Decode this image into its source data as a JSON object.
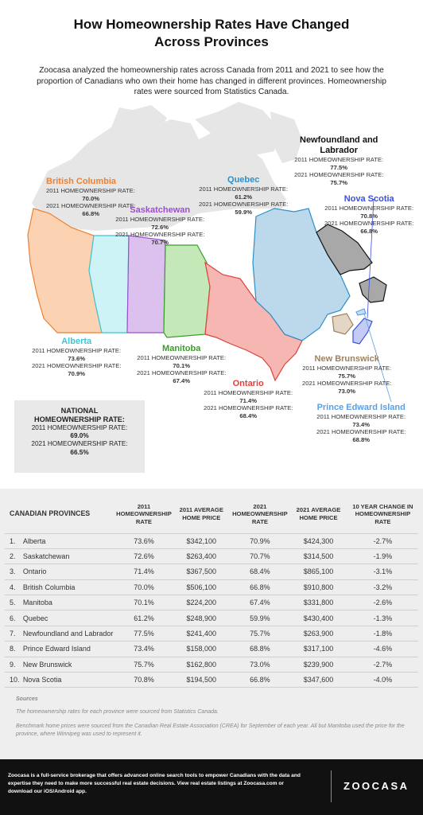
{
  "title_line1": "How Homeownership Rates Have Changed",
  "title_line2": "Across Provinces",
  "intro": "Zoocasa analyzed the homeownership rates across Canada from 2011 and 2021 to see how the proportion of Canadians who own their home has changed in different provinces. Homeownership rates were sourced from Statistics Canada.",
  "labels": {
    "rate2011": "2011 HOMEOWNERSHIP RATE:",
    "rate2021": "2021 HOMEOWNERSHIP RATE:"
  },
  "provinces": {
    "bc": {
      "name": "British Columbia",
      "r2011": "70.0%",
      "r2021": "66.8%",
      "color": "#f07f2e"
    },
    "ab": {
      "name": "Alberta",
      "r2011": "73.6%",
      "r2021": "70.9%",
      "color": "#3ec5d6"
    },
    "sk": {
      "name": "Saskatchewan",
      "r2011": "72.6%",
      "r2021": "70.7%",
      "color": "#9a4fd0"
    },
    "mb": {
      "name": "Manitoba",
      "r2011": "70.1%",
      "r2021": "67.4%",
      "color": "#3a9e2a"
    },
    "on": {
      "name": "Ontario",
      "r2011": "71.4%",
      "r2021": "68.4%",
      "color": "#e0413b"
    },
    "qc": {
      "name": "Quebec",
      "r2011": "61.2%",
      "r2021": "59.9%",
      "color": "#2f8fc7"
    },
    "nl": {
      "name_line1": "Newfoundland and",
      "name_line2": "Labrador",
      "r2011": "77.5%",
      "r2021": "75.7%",
      "color": "#111111"
    },
    "ns": {
      "name": "Nova Scotia",
      "r2011": "70.8%",
      "r2021": "66.8%",
      "color": "#3a4fe0"
    },
    "nb": {
      "name": "New Brunswick",
      "r2011": "75.7%",
      "r2021": "73.0%",
      "color": "#9c8160"
    },
    "pe": {
      "name": "Prince Edward Island",
      "r2011": "73.4%",
      "r2021": "68.8%",
      "color": "#5aa0e6"
    }
  },
  "national": {
    "title_line1": "NATIONAL",
    "title_line2": "HOMEOWNERSHIP RATE:",
    "r2011": "69.0%",
    "r2021": "66.5%"
  },
  "table": {
    "headers": [
      "CANADIAN PROVINCES",
      "2011 HOMEOWNERSHIP RATE",
      "2011 AVERAGE HOME PRICE",
      "2021 HOMEOWNERSHIP RATE",
      "2021 AVERAGE HOME PRICE",
      "10 YEAR CHANGE IN HOMEOWNERSHIP RATE"
    ],
    "rows": [
      [
        "1.",
        "Alberta",
        "73.6%",
        "$342,100",
        "70.9%",
        "$424,300",
        "-2.7%"
      ],
      [
        "2.",
        "Saskatchewan",
        "72.6%",
        "$263,400",
        "70.7%",
        "$314,500",
        "-1.9%"
      ],
      [
        "3.",
        "Ontario",
        "71.4%",
        "$367,500",
        "68.4%",
        "$865,100",
        "-3.1%"
      ],
      [
        "4.",
        "British Columbia",
        "70.0%",
        "$506,100",
        "66.8%",
        "$910,800",
        "-3.2%"
      ],
      [
        "5.",
        "Manitoba",
        "70.1%",
        "$224,200",
        "67.4%",
        "$331,800",
        "-2.6%"
      ],
      [
        "6.",
        "Quebec",
        "61.2%",
        "$248,900",
        "59.9%",
        "$430,400",
        "-1.3%"
      ],
      [
        "7.",
        "Newfoundland and Labrador",
        "77.5%",
        "$241,400",
        "75.7%",
        "$263,900",
        "-1.8%"
      ],
      [
        "8.",
        "Prince Edward Island",
        "73.4%",
        "$158,000",
        "68.8%",
        "$317,100",
        "-4.6%"
      ],
      [
        "9.",
        "New Brunswick",
        "75.7%",
        "$162,800",
        "73.0%",
        "$239,900",
        "-2.7%"
      ],
      [
        "10.",
        "Nova Scotia",
        "70.8%",
        "$194,500",
        "66.8%",
        "$347,600",
        "-4.0%"
      ]
    ]
  },
  "sources": {
    "heading": "Sources",
    "line1": "The homeownership rates for each province were sourced from Statistics Canada.",
    "line2": "Benchmark home prices were sourced from the Canadian Real Estate Association (CREA) for September of each year. All but Manitoba used the price for the province, where Winnipeg was used to represent it."
  },
  "footer": {
    "text": "Zoocasa is a full-service brokerage that offers advanced online search tools to empower Canadians with the data and expertise they need to make more successful real estate decisions. View real estate listings at Zoocasa.com or download our iOS/Android app.",
    "logo": "ZOOCASA"
  }
}
